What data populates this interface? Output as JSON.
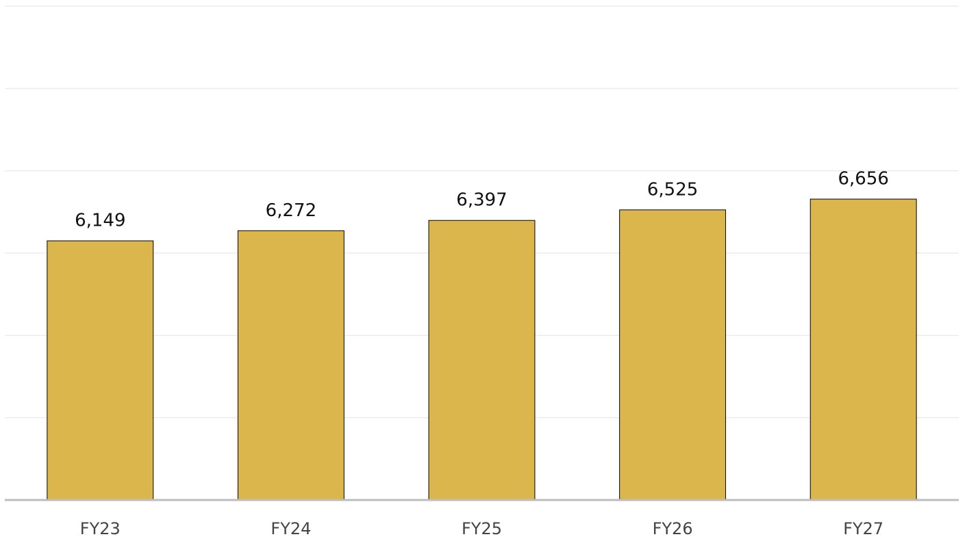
{
  "chart_data": {
    "type": "bar",
    "categories": [
      "FY23",
      "FY24",
      "FY25",
      "FY26",
      "FY27"
    ],
    "values": [
      6149,
      6272,
      6397,
      6525,
      6656
    ],
    "value_labels": [
      "6,149",
      "6,272",
      "6,397",
      "6,525",
      "6,656"
    ],
    "color": "#dbb64c",
    "ylim": [
      3000,
      9000
    ],
    "yticks": [
      3000,
      4000,
      5000,
      6000,
      7000,
      8000,
      9000
    ],
    "grid": true
  }
}
